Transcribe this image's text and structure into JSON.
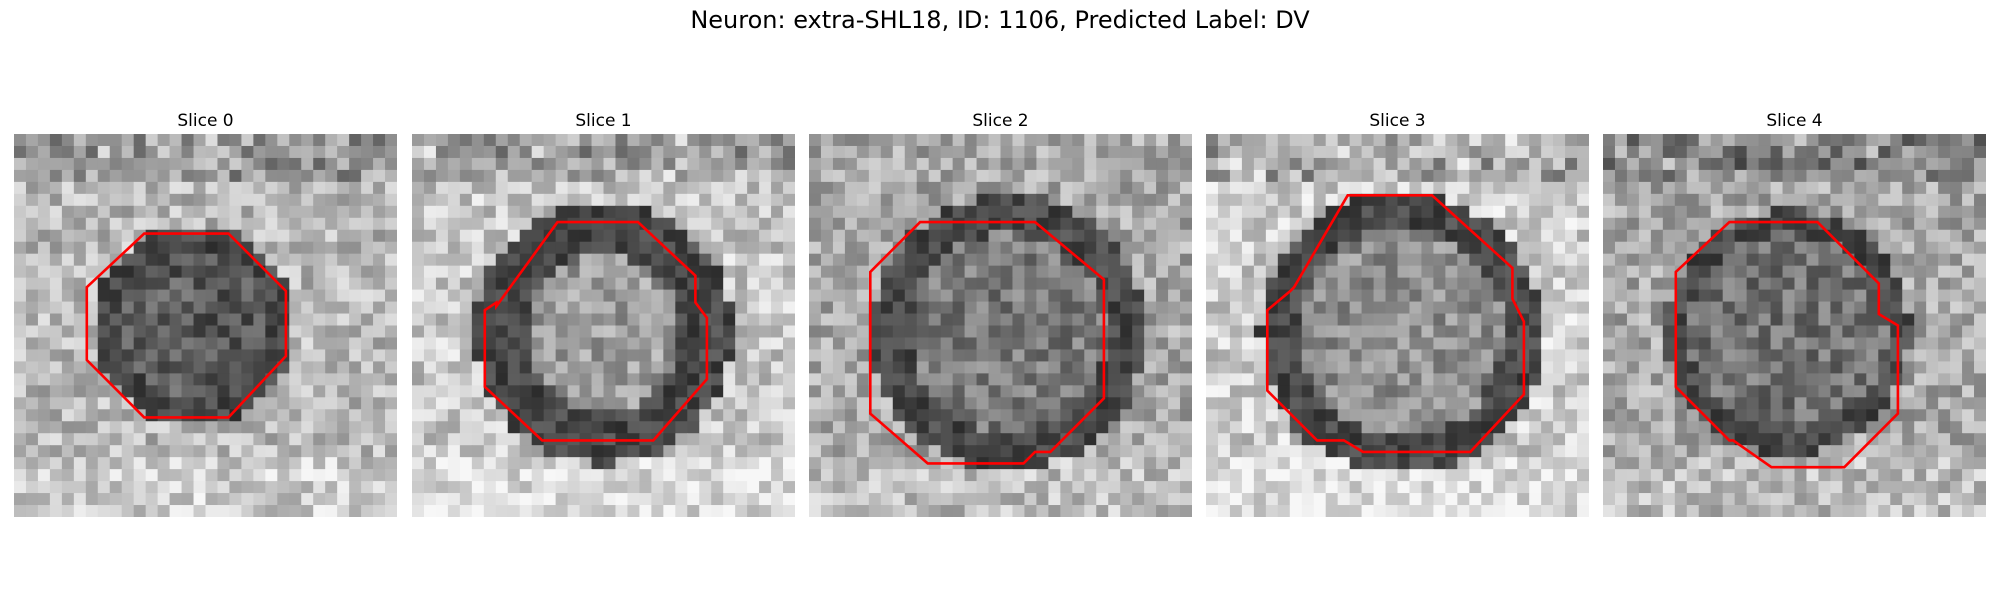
{
  "figure": {
    "title": "Neuron: extra-SHL18, ID: 1106, Predicted Label: DV"
  },
  "panels": [
    {
      "title": "Slice 0"
    },
    {
      "title": "Slice 1"
    },
    {
      "title": "Slice 2"
    },
    {
      "title": "Slice 3"
    },
    {
      "title": "Slice 4"
    }
  ],
  "colors": {
    "contour": "#ff0000",
    "background": "#ffffff"
  },
  "image": {
    "colormap": "gray",
    "grid": "32x32"
  }
}
